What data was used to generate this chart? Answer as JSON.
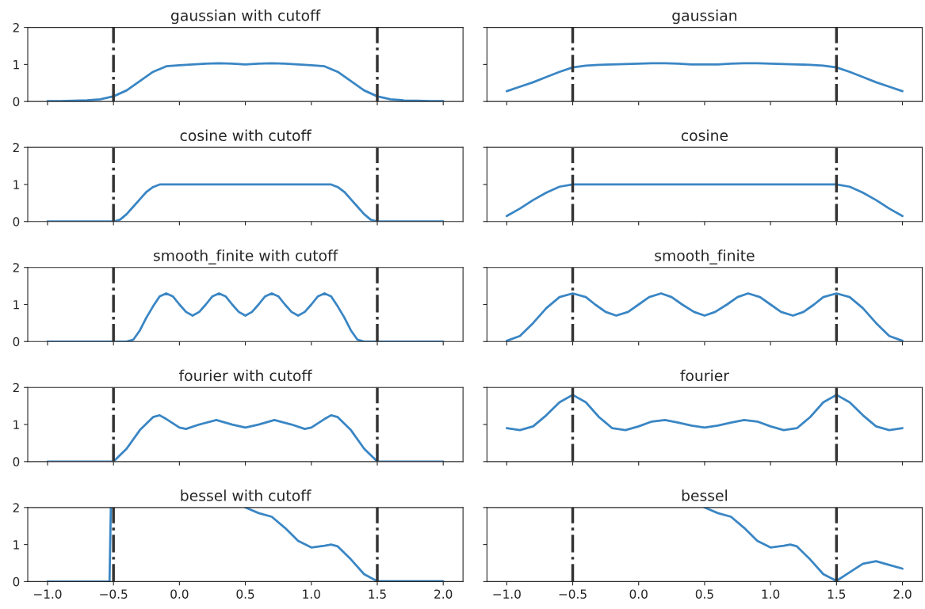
{
  "chart_data": [
    {
      "type": "line",
      "title": "gaussian with cutoff",
      "xlim": [
        -1.15,
        2.15
      ],
      "ylim": [
        0,
        2
      ],
      "yticks": [
        0,
        1,
        2
      ],
      "xticks": [
        {
          "value": -1.0,
          "label": null
        },
        {
          "value": -0.5,
          "label": null
        },
        {
          "value": 0.0,
          "label": null
        },
        {
          "value": 0.5,
          "label": null
        },
        {
          "value": 1.0,
          "label": null
        },
        {
          "value": 1.5,
          "label": null
        },
        {
          "value": 2.0,
          "label": null
        }
      ],
      "tick_labels": "y",
      "ref_lines": [
        {
          "axis": "x",
          "value": -0.5,
          "color": "#333333",
          "line_style": "dashdot"
        },
        {
          "axis": "x",
          "value": 1.5,
          "color": "#333333",
          "line_style": "dashdot"
        }
      ],
      "series": [
        {
          "color": "#3a86c4",
          "x": [
            -1.0,
            -0.9,
            -0.8,
            -0.7,
            -0.6,
            -0.5,
            -0.4,
            -0.3,
            -0.2,
            -0.1,
            0.0,
            0.1,
            0.2,
            0.3,
            0.4,
            0.5,
            0.6,
            0.7,
            0.8,
            0.9,
            1.0,
            1.1,
            1.2,
            1.3,
            1.4,
            1.5,
            1.6,
            1.7,
            1.8,
            1.9,
            2.0
          ],
          "values": [
            0.01,
            0.01,
            0.02,
            0.03,
            0.06,
            0.14,
            0.3,
            0.55,
            0.8,
            0.95,
            0.98,
            1.0,
            1.02,
            1.03,
            1.02,
            1.0,
            1.02,
            1.03,
            1.02,
            1.0,
            0.98,
            0.95,
            0.8,
            0.55,
            0.3,
            0.14,
            0.06,
            0.03,
            0.02,
            0.01,
            0.01
          ]
        }
      ]
    },
    {
      "type": "line",
      "title": "gaussian",
      "xlim": [
        -1.15,
        2.15
      ],
      "ylim": [
        0,
        2
      ],
      "yticks": [
        0,
        1,
        2
      ],
      "xticks": [
        {
          "value": -1.0,
          "label": null
        },
        {
          "value": -0.5,
          "label": null
        },
        {
          "value": 0.0,
          "label": null
        },
        {
          "value": 0.5,
          "label": null
        },
        {
          "value": 1.0,
          "label": null
        },
        {
          "value": 1.5,
          "label": null
        },
        {
          "value": 2.0,
          "label": null
        }
      ],
      "tick_labels": false,
      "ref_lines": [
        {
          "axis": "x",
          "value": -0.5,
          "color": "#333333",
          "line_style": "dashdot"
        },
        {
          "axis": "x",
          "value": 1.5,
          "color": "#333333",
          "line_style": "dashdot"
        }
      ],
      "series": [
        {
          "color": "#3a86c4",
          "x": [
            -1.0,
            -0.9,
            -0.8,
            -0.7,
            -0.6,
            -0.5,
            -0.4,
            -0.3,
            -0.2,
            -0.1,
            0.0,
            0.1,
            0.2,
            0.3,
            0.4,
            0.5,
            0.6,
            0.7,
            0.8,
            0.9,
            1.0,
            1.1,
            1.2,
            1.3,
            1.4,
            1.5,
            1.6,
            1.7,
            1.8,
            1.9,
            2.0
          ],
          "values": [
            0.28,
            0.4,
            0.52,
            0.66,
            0.8,
            0.92,
            0.97,
            0.99,
            1.0,
            1.01,
            1.02,
            1.03,
            1.03,
            1.02,
            1.0,
            1.0,
            1.0,
            1.02,
            1.03,
            1.03,
            1.02,
            1.01,
            1.0,
            0.99,
            0.97,
            0.92,
            0.8,
            0.66,
            0.52,
            0.4,
            0.28
          ]
        }
      ]
    },
    {
      "type": "line",
      "title": "cosine with cutoff",
      "xlim": [
        -1.15,
        2.15
      ],
      "ylim": [
        0,
        2
      ],
      "yticks": [
        0,
        1,
        2
      ],
      "xticks": [
        {
          "value": -1.0,
          "label": null
        },
        {
          "value": -0.5,
          "label": null
        },
        {
          "value": 0.0,
          "label": null
        },
        {
          "value": 0.5,
          "label": null
        },
        {
          "value": 1.0,
          "label": null
        },
        {
          "value": 1.5,
          "label": null
        },
        {
          "value": 2.0,
          "label": null
        }
      ],
      "tick_labels": "y",
      "ref_lines": [
        {
          "axis": "x",
          "value": -0.5,
          "color": "#333333",
          "line_style": "dashdot"
        },
        {
          "axis": "x",
          "value": 1.5,
          "color": "#333333",
          "line_style": "dashdot"
        }
      ],
      "series": [
        {
          "color": "#3a86c4",
          "x": [
            -1.0,
            -0.5,
            -0.45,
            -0.4,
            -0.35,
            -0.3,
            -0.25,
            -0.2,
            -0.15,
            1.15,
            1.2,
            1.25,
            1.3,
            1.35,
            1.4,
            1.45,
            1.5,
            2.0
          ],
          "values": [
            0.0,
            0.0,
            0.05,
            0.2,
            0.4,
            0.6,
            0.8,
            0.93,
            1.0,
            1.0,
            0.93,
            0.8,
            0.6,
            0.4,
            0.2,
            0.05,
            0.0,
            0.0
          ]
        }
      ]
    },
    {
      "type": "line",
      "title": "cosine",
      "xlim": [
        -1.15,
        2.15
      ],
      "ylim": [
        0,
        2
      ],
      "yticks": [
        0,
        1,
        2
      ],
      "xticks": [
        {
          "value": -1.0,
          "label": null
        },
        {
          "value": -0.5,
          "label": null
        },
        {
          "value": 0.0,
          "label": null
        },
        {
          "value": 0.5,
          "label": null
        },
        {
          "value": 1.0,
          "label": null
        },
        {
          "value": 1.5,
          "label": null
        },
        {
          "value": 2.0,
          "label": null
        }
      ],
      "tick_labels": false,
      "ref_lines": [
        {
          "axis": "x",
          "value": -0.5,
          "color": "#333333",
          "line_style": "dashdot"
        },
        {
          "axis": "x",
          "value": 1.5,
          "color": "#333333",
          "line_style": "dashdot"
        }
      ],
      "series": [
        {
          "color": "#3a86c4",
          "x": [
            -1.0,
            -0.9,
            -0.8,
            -0.7,
            -0.6,
            -0.5,
            1.5,
            1.6,
            1.7,
            1.8,
            1.9,
            2.0
          ],
          "values": [
            0.15,
            0.35,
            0.58,
            0.78,
            0.94,
            1.0,
            1.0,
            0.94,
            0.78,
            0.58,
            0.35,
            0.15
          ]
        }
      ]
    },
    {
      "type": "line",
      "title": "smooth_finite with cutoff",
      "xlim": [
        -1.15,
        2.15
      ],
      "ylim": [
        0,
        2
      ],
      "yticks": [
        0,
        1,
        2
      ],
      "xticks": [
        {
          "value": -1.0,
          "label": null
        },
        {
          "value": -0.5,
          "label": null
        },
        {
          "value": 0.0,
          "label": null
        },
        {
          "value": 0.5,
          "label": null
        },
        {
          "value": 1.0,
          "label": null
        },
        {
          "value": 1.5,
          "label": null
        },
        {
          "value": 2.0,
          "label": null
        }
      ],
      "tick_labels": "y",
      "ref_lines": [
        {
          "axis": "x",
          "value": -0.5,
          "color": "#333333",
          "line_style": "dashdot"
        },
        {
          "axis": "x",
          "value": 1.5,
          "color": "#333333",
          "line_style": "dashdot"
        }
      ],
      "series": [
        {
          "color": "#3a86c4",
          "x": [
            -1.0,
            -0.4,
            -0.35,
            -0.3,
            -0.25,
            -0.2,
            -0.15,
            -0.1,
            -0.05,
            0.0,
            0.05,
            0.1,
            0.15,
            0.2,
            0.25,
            0.3,
            0.35,
            0.4,
            0.45,
            0.5,
            0.55,
            0.6,
            0.65,
            0.7,
            0.75,
            0.8,
            0.85,
            0.9,
            0.95,
            1.0,
            1.05,
            1.1,
            1.15,
            1.2,
            1.25,
            1.3,
            1.35,
            1.4,
            2.0
          ],
          "values": [
            0.0,
            0.0,
            0.05,
            0.3,
            0.65,
            0.95,
            1.22,
            1.3,
            1.22,
            1.0,
            0.8,
            0.7,
            0.8,
            1.0,
            1.22,
            1.3,
            1.22,
            1.0,
            0.8,
            0.7,
            0.8,
            1.0,
            1.22,
            1.3,
            1.22,
            1.0,
            0.8,
            0.7,
            0.8,
            1.0,
            1.22,
            1.3,
            1.22,
            0.95,
            0.65,
            0.3,
            0.05,
            0.0,
            0.0
          ]
        }
      ]
    },
    {
      "type": "line",
      "title": "smooth_finite",
      "xlim": [
        -1.15,
        2.15
      ],
      "ylim": [
        0,
        2
      ],
      "yticks": [
        0,
        1,
        2
      ],
      "xticks": [
        {
          "value": -1.0,
          "label": null
        },
        {
          "value": -0.5,
          "label": null
        },
        {
          "value": 0.0,
          "label": null
        },
        {
          "value": 0.5,
          "label": null
        },
        {
          "value": 1.0,
          "label": null
        },
        {
          "value": 1.5,
          "label": null
        },
        {
          "value": 2.0,
          "label": null
        }
      ],
      "tick_labels": false,
      "ref_lines": [
        {
          "axis": "x",
          "value": -0.5,
          "color": "#333333",
          "line_style": "dashdot"
        },
        {
          "axis": "x",
          "value": 1.5,
          "color": "#333333",
          "line_style": "dashdot"
        }
      ],
      "series": [
        {
          "color": "#3a86c4",
          "x": [
            -1.0,
            -0.9,
            -0.8,
            -0.7,
            -0.6,
            -0.5,
            -0.4,
            -0.33,
            -0.25,
            -0.17,
            -0.08,
            0.0,
            0.08,
            0.17,
            0.25,
            0.33,
            0.42,
            0.5,
            0.58,
            0.67,
            0.75,
            0.83,
            0.92,
            1.0,
            1.08,
            1.17,
            1.25,
            1.33,
            1.4,
            1.5,
            1.6,
            1.7,
            1.8,
            1.9,
            2.0
          ],
          "values": [
            0.02,
            0.15,
            0.5,
            0.9,
            1.2,
            1.3,
            1.2,
            1.0,
            0.8,
            0.7,
            0.8,
            1.0,
            1.2,
            1.3,
            1.2,
            1.0,
            0.8,
            0.7,
            0.8,
            1.0,
            1.2,
            1.3,
            1.2,
            1.0,
            0.8,
            0.7,
            0.8,
            1.0,
            1.2,
            1.3,
            1.2,
            0.9,
            0.5,
            0.15,
            0.02
          ]
        }
      ]
    },
    {
      "type": "line",
      "title": "fourier with cutoff",
      "xlim": [
        -1.15,
        2.15
      ],
      "ylim": [
        0,
        2
      ],
      "yticks": [
        0,
        1,
        2
      ],
      "xticks": [
        {
          "value": -1.0,
          "label": null
        },
        {
          "value": -0.5,
          "label": null
        },
        {
          "value": 0.0,
          "label": null
        },
        {
          "value": 0.5,
          "label": null
        },
        {
          "value": 1.0,
          "label": null
        },
        {
          "value": 1.5,
          "label": null
        },
        {
          "value": 2.0,
          "label": null
        }
      ],
      "tick_labels": "y",
      "ref_lines": [
        {
          "axis": "x",
          "value": -0.5,
          "color": "#333333",
          "line_style": "dashdot"
        },
        {
          "axis": "x",
          "value": 1.5,
          "color": "#333333",
          "line_style": "dashdot"
        }
      ],
      "series": [
        {
          "color": "#3a86c4",
          "x": [
            -1.0,
            -0.5,
            -0.4,
            -0.3,
            -0.2,
            -0.15,
            -0.1,
            0.0,
            0.05,
            0.15,
            0.28,
            0.4,
            0.5,
            0.6,
            0.72,
            0.85,
            0.95,
            1.0,
            1.1,
            1.15,
            1.2,
            1.3,
            1.4,
            1.5,
            2.0
          ],
          "values": [
            0.0,
            0.0,
            0.35,
            0.85,
            1.2,
            1.25,
            1.15,
            0.92,
            0.88,
            1.0,
            1.12,
            1.0,
            0.92,
            1.0,
            1.12,
            1.0,
            0.88,
            0.92,
            1.15,
            1.25,
            1.2,
            0.85,
            0.35,
            0.0,
            0.0
          ]
        }
      ]
    },
    {
      "type": "line",
      "title": "fourier",
      "xlim": [
        -1.15,
        2.15
      ],
      "ylim": [
        0,
        2
      ],
      "yticks": [
        0,
        1,
        2
      ],
      "xticks": [
        {
          "value": -1.0,
          "label": null
        },
        {
          "value": -0.5,
          "label": null
        },
        {
          "value": 0.0,
          "label": null
        },
        {
          "value": 0.5,
          "label": null
        },
        {
          "value": 1.0,
          "label": null
        },
        {
          "value": 1.5,
          "label": null
        },
        {
          "value": 2.0,
          "label": null
        }
      ],
      "tick_labels": false,
      "ref_lines": [
        {
          "axis": "x",
          "value": -0.5,
          "color": "#333333",
          "line_style": "dashdot"
        },
        {
          "axis": "x",
          "value": 1.5,
          "color": "#333333",
          "line_style": "dashdot"
        }
      ],
      "series": [
        {
          "color": "#3a86c4",
          "x": [
            -1.0,
            -0.9,
            -0.8,
            -0.7,
            -0.6,
            -0.5,
            -0.4,
            -0.3,
            -0.2,
            -0.1,
            0.0,
            0.1,
            0.2,
            0.3,
            0.4,
            0.5,
            0.6,
            0.7,
            0.8,
            0.9,
            1.0,
            1.1,
            1.2,
            1.3,
            1.4,
            1.5,
            1.6,
            1.7,
            1.8,
            1.9,
            2.0
          ],
          "values": [
            0.9,
            0.85,
            0.95,
            1.25,
            1.6,
            1.8,
            1.6,
            1.2,
            0.9,
            0.85,
            0.95,
            1.08,
            1.12,
            1.05,
            0.97,
            0.92,
            0.97,
            1.05,
            1.12,
            1.08,
            0.95,
            0.85,
            0.9,
            1.2,
            1.6,
            1.8,
            1.6,
            1.25,
            0.95,
            0.85,
            0.9
          ]
        }
      ]
    },
    {
      "type": "line",
      "title": "bessel with cutoff",
      "xlim": [
        -1.15,
        2.15
      ],
      "ylim": [
        0,
        2
      ],
      "yticks": [
        0,
        1,
        2
      ],
      "xticks": [
        {
          "value": -1.0,
          "label": "−1.0"
        },
        {
          "value": -0.5,
          "label": "−0.5"
        },
        {
          "value": 0.0,
          "label": "0.0"
        },
        {
          "value": 0.5,
          "label": "0.5"
        },
        {
          "value": 1.0,
          "label": "1.0"
        },
        {
          "value": 1.5,
          "label": "1.5"
        },
        {
          "value": 2.0,
          "label": "2.0"
        }
      ],
      "ref_lines": [
        {
          "axis": "x",
          "value": -0.5,
          "color": "#333333",
          "line_style": "dashdot"
        },
        {
          "axis": "x",
          "value": 1.5,
          "color": "#333333",
          "line_style": "dashdot"
        }
      ],
      "series": [
        {
          "color": "#3a86c4",
          "x": [
            -1.0,
            -0.53,
            -0.52,
            0.0,
            0.5,
            0.6,
            0.7,
            0.8,
            0.9,
            1.0,
            1.1,
            1.15,
            1.2,
            1.3,
            1.4,
            1.5,
            2.0
          ],
          "values": [
            0.0,
            0.0,
            2.0,
            null,
            2.0,
            1.85,
            1.75,
            1.45,
            1.1,
            0.92,
            0.97,
            1.0,
            0.95,
            0.6,
            0.2,
            0.01,
            0.01
          ]
        }
      ]
    },
    {
      "type": "line",
      "title": "bessel",
      "xlim": [
        -1.15,
        2.15
      ],
      "ylim": [
        0,
        2
      ],
      "yticks": [
        0,
        1,
        2
      ],
      "xticks": [
        {
          "value": -1.0,
          "label": "−1.0"
        },
        {
          "value": -0.5,
          "label": "−0.5"
        },
        {
          "value": 0.0,
          "label": "0.0"
        },
        {
          "value": 0.5,
          "label": "0.5"
        },
        {
          "value": 1.0,
          "label": "1.0"
        },
        {
          "value": 1.5,
          "label": "1.5"
        },
        {
          "value": 2.0,
          "label": "2.0"
        }
      ],
      "tick_labels": "x",
      "ref_lines": [
        {
          "axis": "x",
          "value": -0.5,
          "color": "#333333",
          "line_style": "dashdot"
        },
        {
          "axis": "x",
          "value": 1.5,
          "color": "#333333",
          "line_style": "dashdot"
        }
      ],
      "series": [
        {
          "color": "#3a86c4",
          "x": [
            0.5,
            0.6,
            0.7,
            0.8,
            0.9,
            1.0,
            1.1,
            1.15,
            1.2,
            1.3,
            1.4,
            1.5,
            1.6,
            1.7,
            1.8,
            1.9,
            2.0
          ],
          "values": [
            2.0,
            1.85,
            1.75,
            1.45,
            1.1,
            0.92,
            0.97,
            1.0,
            0.95,
            0.6,
            0.2,
            0.02,
            0.25,
            0.48,
            0.55,
            0.45,
            0.35
          ]
        }
      ]
    }
  ]
}
